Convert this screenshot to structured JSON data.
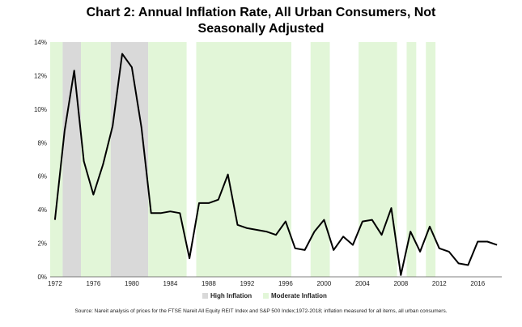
{
  "title_line1": "Chart 2: Annual Inflation Rate, All Urban Consumers, Not",
  "title_line2": "Seasonally Adjusted",
  "source": "Source: Nareit analysis of prices for the FTSE Nareit All Equity REIT Index and S&P 500 Index;1972-2018; inflation measured for all items, all urban consumers.",
  "colors": {
    "high_inflation": "#d9d9d9",
    "moderate_inflation": "#e2f6d8",
    "line": "#000000"
  },
  "chart_data": {
    "type": "line",
    "title": "Chart 2: Annual Inflation Rate, All Urban Consumers, Not Seasonally Adjusted",
    "xlabel": "",
    "ylabel": "",
    "x": [
      1972,
      1973,
      1974,
      1975,
      1976,
      1977,
      1978,
      1979,
      1980,
      1981,
      1982,
      1983,
      1984,
      1985,
      1986,
      1987,
      1988,
      1989,
      1990,
      1991,
      1992,
      1993,
      1994,
      1995,
      1996,
      1997,
      1998,
      1999,
      2000,
      2001,
      2002,
      2003,
      2004,
      2005,
      2006,
      2007,
      2008,
      2009,
      2010,
      2011,
      2012,
      2013,
      2014,
      2015,
      2016,
      2017,
      2018
    ],
    "series": [
      {
        "name": "",
        "values": [
          3.4,
          8.7,
          12.3,
          6.9,
          4.9,
          6.7,
          9.0,
          13.3,
          12.5,
          8.9,
          3.8,
          3.8,
          3.9,
          3.8,
          1.1,
          4.4,
          4.4,
          4.6,
          6.1,
          3.1,
          2.9,
          2.8,
          2.7,
          2.5,
          3.3,
          1.7,
          1.6,
          2.7,
          3.4,
          1.6,
          2.4,
          1.9,
          3.3,
          3.4,
          2.5,
          4.1,
          0.1,
          2.7,
          1.5,
          3.0,
          1.7,
          1.5,
          0.8,
          0.7,
          2.1,
          2.1,
          1.9
        ]
      }
    ],
    "xlim": [
      1972,
      2018
    ],
    "ylim": [
      0,
      14
    ],
    "x_ticks": [
      "1972",
      "1976",
      "1980",
      "1984",
      "1988",
      "1992",
      "1996",
      "2000",
      "2004",
      "2008",
      "2012",
      "2016"
    ],
    "y_ticks": [
      "0%",
      "2%",
      "4%",
      "6%",
      "8%",
      "10%",
      "12%",
      "14%"
    ],
    "shaded_periods": [
      {
        "type": "moderate",
        "start": 1971.5,
        "end": 1972.8
      },
      {
        "type": "high",
        "start": 1972.8,
        "end": 1974.7
      },
      {
        "type": "moderate",
        "start": 1974.7,
        "end": 1977.8
      },
      {
        "type": "high",
        "start": 1977.8,
        "end": 1981.7
      },
      {
        "type": "moderate",
        "start": 1981.7,
        "end": 1985.7
      },
      {
        "type": "moderate",
        "start": 1986.7,
        "end": 1996.6
      },
      {
        "type": "moderate",
        "start": 1998.6,
        "end": 2000.6
      },
      {
        "type": "moderate",
        "start": 2003.6,
        "end": 2007.6
      },
      {
        "type": "moderate",
        "start": 2008.6,
        "end": 2009.6
      },
      {
        "type": "moderate",
        "start": 2010.6,
        "end": 2011.6
      }
    ],
    "legend": {
      "position": "bottom-center",
      "entries": [
        {
          "label": "High Inflation",
          "type": "high"
        },
        {
          "label": "Moderate Inflation",
          "type": "moderate"
        }
      ]
    },
    "grid": false
  }
}
